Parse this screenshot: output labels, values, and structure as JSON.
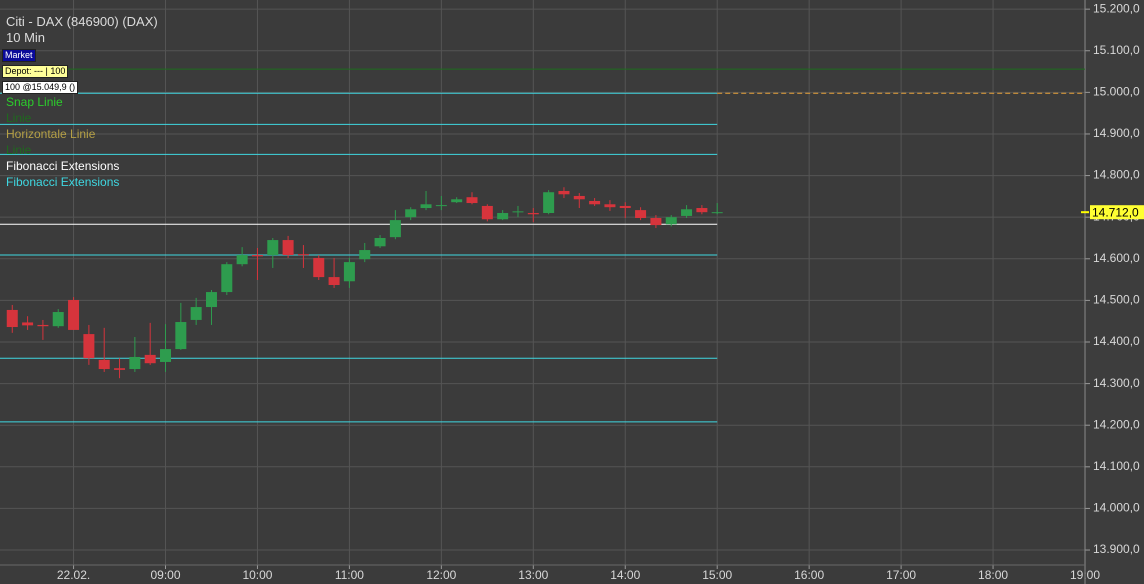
{
  "chart_data": {
    "type": "candlestick",
    "title": "Citi - DAX (846900) (DAX)",
    "subtitle": "10 Min",
    "badges": [
      {
        "text": "Market",
        "color": "#ffffff",
        "background": "#0a0a9a"
      },
      {
        "text": "Depot: --- | 100",
        "color": "#000000",
        "background": "#ffff99"
      },
      {
        "text": "100 @15.049,9 ()",
        "color": "#000000",
        "background": "#ffffff"
      }
    ],
    "legend": [
      {
        "text": "Snap Linie",
        "color": "#2ccc2c"
      },
      {
        "text": "Linie",
        "color": "#1f6a1f"
      },
      {
        "text": "Horizontale Linie",
        "color": "#b5a046"
      },
      {
        "text": "Linie",
        "color": "#1f6a1f"
      },
      {
        "text": "Fibonacci Extensions",
        "color": "#ffffff"
      },
      {
        "text": "Fibonacci Extensions",
        "color": "#3fd8e2"
      }
    ],
    "up_color": "#2e9c4e",
    "down_color": "#d6343c",
    "x": [
      440,
      450,
      460,
      470,
      480,
      490,
      500,
      510,
      520,
      530,
      540,
      550,
      560,
      570,
      580,
      590,
      600,
      610,
      620,
      630,
      640,
      650,
      660,
      670,
      680,
      690,
      700,
      710,
      720,
      730,
      740,
      750,
      760,
      770,
      780,
      790,
      800,
      810,
      820,
      830,
      840,
      850,
      860,
      870,
      880,
      890,
      900
    ],
    "open": [
      14477,
      14447,
      14441,
      14438,
      14501,
      14419,
      14357,
      14337,
      14335,
      14369,
      14352,
      14383,
      14453,
      14484,
      14520,
      14587,
      14609,
      14609,
      14645,
      14611,
      14602,
      14556,
      14546,
      14599,
      14630,
      14652,
      14700,
      14722,
      14727,
      14736,
      14748,
      14727,
      14695,
      14712,
      14710,
      14710,
      14763,
      14751,
      14739,
      14731,
      14727,
      14717,
      14698,
      14683,
      14703,
      14722,
      14710
    ],
    "high": [
      14489,
      14462,
      14453,
      14479,
      14508,
      14441,
      14434,
      14361,
      14412,
      14446,
      14443,
      14494,
      14506,
      14525,
      14592,
      14628,
      14626,
      14650,
      14655,
      14633,
      14609,
      14602,
      14602,
      14638,
      14657,
      14717,
      14724,
      14763,
      14751,
      14748,
      14760,
      14731,
      14717,
      14727,
      14722,
      14765,
      14772,
      14758,
      14746,
      14741,
      14736,
      14724,
      14705,
      14705,
      14729,
      14729,
      14734
    ],
    "low": [
      14422,
      14429,
      14405,
      14434,
      14429,
      14345,
      14328,
      14313,
      14328,
      14345,
      14328,
      14381,
      14441,
      14441,
      14513,
      14582,
      14549,
      14578,
      14602,
      14578,
      14549,
      14530,
      14530,
      14592,
      14626,
      14647,
      14693,
      14717,
      14717,
      14734,
      14731,
      14690,
      14693,
      14700,
      14688,
      14707,
      14746,
      14722,
      14727,
      14715,
      14698,
      14693,
      14674,
      14678,
      14698,
      14707,
      14707
    ],
    "close": [
      14436,
      14440,
      14438,
      14472,
      14429,
      14361,
      14335,
      14333,
      14364,
      14349,
      14383,
      14448,
      14484,
      14520,
      14587,
      14609,
      14606,
      14645,
      14609,
      14609,
      14556,
      14537,
      14592,
      14621,
      14650,
      14693,
      14719,
      14731,
      14729,
      14743,
      14734,
      14695,
      14710,
      14714,
      14707,
      14760,
      14755,
      14743,
      14731,
      14724,
      14722,
      14698,
      14681,
      14700,
      14719,
      14712,
      14712
    ],
    "levels": [
      {
        "value": 15056,
        "color": "#1c6e1c"
      },
      {
        "value": 14998,
        "color": "#3fd8e2",
        "x_end": 900
      },
      {
        "value": 14998,
        "color": "#e8a23a",
        "x_start": 900,
        "dashed": true
      },
      {
        "value": 14923,
        "color": "#3fd8e2",
        "x_end": 900
      },
      {
        "value": 14851,
        "color": "#3fd8e2",
        "x_end": 900
      },
      {
        "value": 14683,
        "color": "#ffffff",
        "x_end": 900
      },
      {
        "value": 14609,
        "color": "#3fd8e2",
        "x_end": 900
      },
      {
        "value": 14361,
        "color": "#3fd8e2",
        "x_end": 900
      },
      {
        "value": 14208,
        "color": "#3fd8e2",
        "x_end": 900
      }
    ],
    "last_price": {
      "value": 14712,
      "label": "14.712,0"
    },
    "xlim": [
      432,
      1140
    ],
    "ylim": [
      13864,
      15222
    ],
    "xticks": [
      {
        "value": 480,
        "label": "22.02."
      },
      {
        "value": 540,
        "label": "09:00"
      },
      {
        "value": 600,
        "label": "10:00"
      },
      {
        "value": 660,
        "label": "11:00"
      },
      {
        "value": 720,
        "label": "12:00"
      },
      {
        "value": 780,
        "label": "13:00"
      },
      {
        "value": 840,
        "label": "14:00"
      },
      {
        "value": 900,
        "label": "15:00"
      },
      {
        "value": 960,
        "label": "16:00"
      },
      {
        "value": 1020,
        "label": "17:00"
      },
      {
        "value": 1080,
        "label": "18:00"
      },
      {
        "value": 1140,
        "label": "19:00"
      }
    ],
    "yticks": [
      {
        "value": 15200,
        "label": "15.200,0"
      },
      {
        "value": 15100,
        "label": "15.100,0"
      },
      {
        "value": 15000,
        "label": "15.000,0"
      },
      {
        "value": 14900,
        "label": "14.900,0"
      },
      {
        "value": 14800,
        "label": "14.800,0"
      },
      {
        "value": 14700,
        "label": "14.700,0"
      },
      {
        "value": 14600,
        "label": "14.600,0"
      },
      {
        "value": 14500,
        "label": "14.500,0"
      },
      {
        "value": 14400,
        "label": "14.400,0"
      },
      {
        "value": 14300,
        "label": "14.300,0"
      },
      {
        "value": 14200,
        "label": "14.200,0"
      },
      {
        "value": 14100,
        "label": "14.100,0"
      },
      {
        "value": 14000,
        "label": "14.000,0"
      },
      {
        "value": 13900,
        "label": "13.900,0"
      }
    ],
    "grid": true
  }
}
